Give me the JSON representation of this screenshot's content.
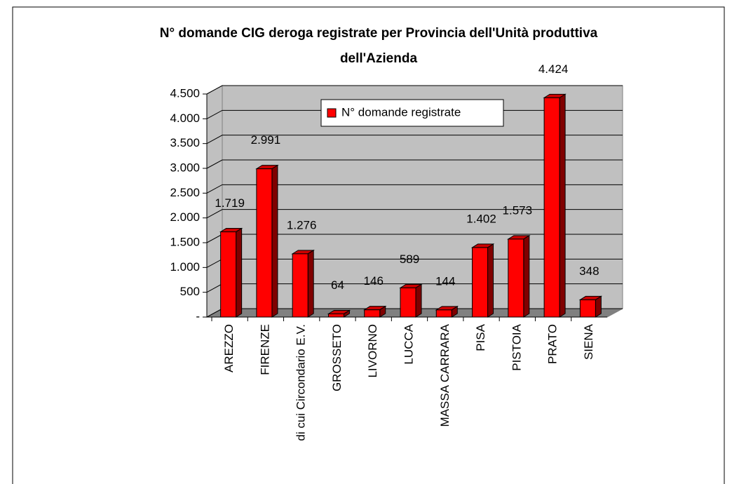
{
  "chart_data": {
    "type": "bar",
    "title_lines": [
      "N° domande CIG deroga registrate per Provincia dell'Unità produttiva",
      "dell'Azienda"
    ],
    "categories": [
      "AREZZO",
      "FIRENZE",
      "di cui Circondario E.V.",
      "GROSSETO",
      "LIVORNO",
      "LUCCA",
      "MASSA CARRARA",
      "PISA",
      "PISTOIA",
      "PRATO",
      "SIENA"
    ],
    "series": [
      {
        "name": "N° domande registrate",
        "color": "#ff0000",
        "values": [
          1719,
          2991,
          1276,
          64,
          146,
          589,
          144,
          1402,
          1573,
          4424,
          348
        ],
        "value_labels": [
          "1.719",
          "2.991",
          "1.276",
          "64",
          "146",
          "589",
          "144",
          "1.402",
          "1.573",
          "4.424",
          "348"
        ]
      }
    ],
    "ylim": [
      0,
      4500
    ],
    "yticks": [
      {
        "value": 0,
        "label": "-"
      },
      500,
      {
        "value": 1000,
        "label": "1.000"
      },
      {
        "value": 1500,
        "label": "1.500"
      },
      {
        "value": 2000,
        "label": "2.000"
      },
      {
        "value": 2500,
        "label": "2.500"
      },
      {
        "value": 3000,
        "label": "3.000"
      },
      {
        "value": 3500,
        "label": "3.500"
      },
      {
        "value": 4000,
        "label": "4.000"
      },
      {
        "value": 4500,
        "label": "4.500"
      }
    ],
    "grid": true,
    "legend": "top"
  }
}
